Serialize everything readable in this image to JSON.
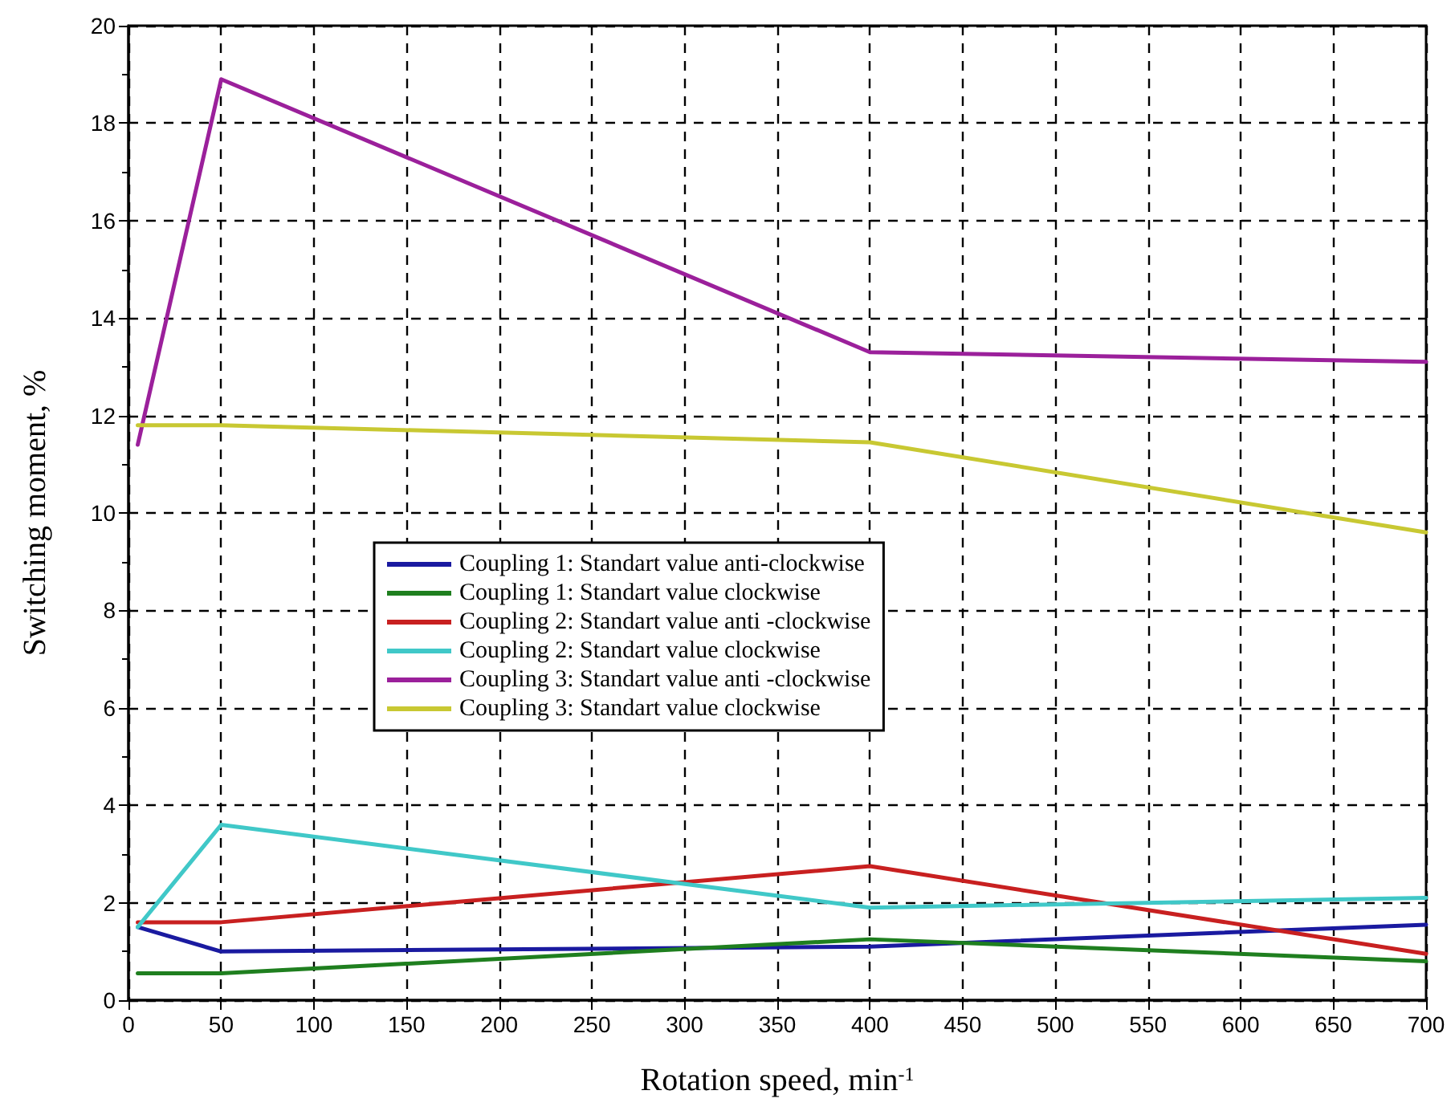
{
  "chart_data": {
    "type": "line",
    "xlabel": "Rotation speed, min$^{-1}$",
    "ylabel": "Switching moment, %",
    "x": [
      5,
      50,
      400,
      700
    ],
    "series": [
      {
        "name": "Coupling 1: Standart value anti-clockwise",
        "color": "#1a1aa0",
        "values": [
          1.5,
          1.0,
          1.1,
          1.55
        ]
      },
      {
        "name": "Coupling 1: Standart value clockwise",
        "color": "#1f7f1f",
        "values": [
          0.55,
          0.55,
          1.25,
          0.8
        ]
      },
      {
        "name": "Coupling 2: Standart value anti -clockwise",
        "color": "#c82020",
        "values": [
          1.6,
          1.6,
          2.75,
          0.95
        ]
      },
      {
        "name": "Coupling 2: Standart value clockwise",
        "color": "#40c8c8",
        "values": [
          1.5,
          3.6,
          1.9,
          2.1
        ]
      },
      {
        "name": "Coupling 3: Standart value anti -clockwise",
        "color": "#9b209b",
        "values": [
          11.4,
          18.9,
          13.3,
          13.1
        ]
      },
      {
        "name": "Coupling 3: Standart value clockwise",
        "color": "#c8c832",
        "values": [
          11.8,
          11.8,
          11.45,
          9.6
        ]
      }
    ],
    "xlim": [
      0,
      700
    ],
    "xticks": [
      0,
      50,
      100,
      150,
      200,
      250,
      300,
      350,
      400,
      450,
      500,
      550,
      600,
      650,
      700
    ],
    "ylim": [
      0,
      20
    ],
    "yticks": [
      0,
      2,
      4,
      6,
      8,
      10,
      12,
      14,
      16,
      18,
      20
    ],
    "grid": true,
    "legend": "center",
    "marker": "none",
    "line_style": "solid"
  }
}
